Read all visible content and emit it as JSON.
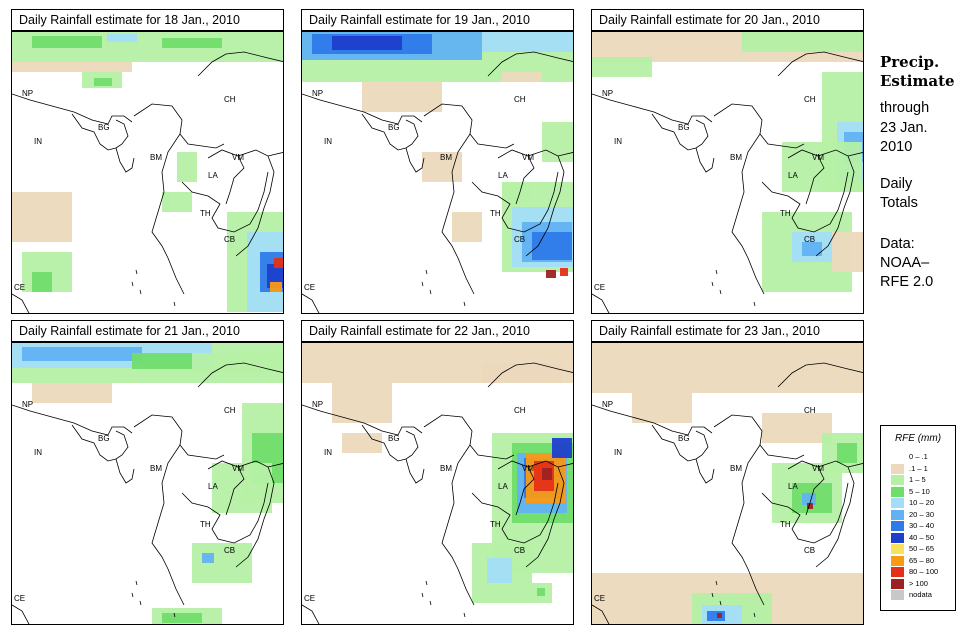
{
  "panels": [
    {
      "title": "Daily Rainfall estimate for  18 Jan., 2010",
      "day": 18
    },
    {
      "title": "Daily Rainfall estimate for  19 Jan., 2010",
      "day": 19
    },
    {
      "title": "Daily Rainfall estimate for  20 Jan., 2010",
      "day": 20
    },
    {
      "title": "Daily Rainfall estimate for  21 Jan., 2010",
      "day": 21
    },
    {
      "title": "Daily Rainfall estimate for  22 Jan., 2010",
      "day": 22
    },
    {
      "title": "Daily Rainfall estimate for  23 Jan., 2010",
      "day": 23
    }
  ],
  "country_labels": [
    "NP",
    "CH",
    "IN",
    "BG",
    "BM",
    "VM",
    "LA",
    "TH",
    "CB",
    "CE"
  ],
  "side": {
    "title_line1": "Precip.",
    "title_line2": "Estimate",
    "through": "through",
    "date_line1": "23 Jan.",
    "date_line2": "2010",
    "daily_line1": "Daily",
    "daily_line2": "Totals",
    "data_line1": "Data:",
    "data_line2": "NOAA–",
    "data_line3": "RFE 2.0"
  },
  "legend": {
    "title": "RFE (mm)",
    "items": [
      {
        "label": "0 – .1",
        "color": "#ffffff"
      },
      {
        "label": ".1 – 1",
        "color": "#ecd9bd"
      },
      {
        "label": "1 – 5",
        "color": "#b5f0a5"
      },
      {
        "label": "5 – 10",
        "color": "#70dd6a"
      },
      {
        "label": "10 – 20",
        "color": "#a3ddf7"
      },
      {
        "label": "20 – 30",
        "color": "#61b2f3"
      },
      {
        "label": "30 – 40",
        "color": "#2e7ae8"
      },
      {
        "label": "40 – 50",
        "color": "#1d3fcc"
      },
      {
        "label": "50 – 65",
        "color": "#f8e25c"
      },
      {
        "label": "65 – 80",
        "color": "#fa9a14"
      },
      {
        "label": "80 – 100",
        "color": "#e43018"
      },
      {
        "label": "> 100",
        "color": "#9c2222"
      },
      {
        "label": "nodata",
        "color": "#c8c8c8"
      }
    ]
  }
}
